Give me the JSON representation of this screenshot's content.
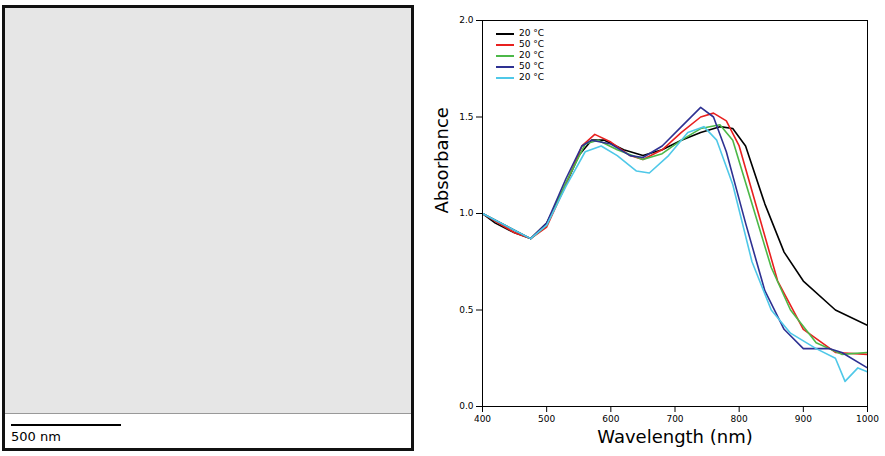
{
  "chart_data": {
    "type": "line",
    "x_label": "Wavelength (nm)",
    "y_label": "Absorbance",
    "xlim": [
      400,
      1000
    ],
    "xticks": [
      400,
      500,
      600,
      700,
      800,
      900,
      1000
    ],
    "ylim": [
      0,
      2
    ],
    "yticks": [
      {
        "value": 0,
        "label": "0.0"
      },
      {
        "value": 0.5,
        "label": "0.5"
      },
      {
        "value": 1,
        "label": "1.0"
      },
      {
        "value": 1.5,
        "label": "1.5"
      },
      {
        "value": 2,
        "label": "2.0"
      }
    ],
    "legend": "top-left",
    "series": [
      {
        "name": "20 °C",
        "color": "#000000",
        "x": [
          400,
          420,
          450,
          475,
          500,
          530,
          550,
          570,
          590,
          620,
          650,
          680,
          710,
          740,
          770,
          790,
          810,
          840,
          870,
          900,
          950,
          1000
        ],
        "values": [
          1.0,
          0.95,
          0.9,
          0.87,
          0.95,
          1.15,
          1.3,
          1.38,
          1.38,
          1.33,
          1.3,
          1.33,
          1.38,
          1.42,
          1.45,
          1.44,
          1.35,
          1.05,
          0.8,
          0.65,
          0.5,
          0.42
        ]
      },
      {
        "name": "50 °C",
        "color": "#e8201f",
        "x": [
          400,
          450,
          475,
          500,
          530,
          555,
          575,
          600,
          630,
          650,
          680,
          710,
          740,
          760,
          780,
          800,
          830,
          860,
          900,
          950,
          1000
        ],
        "values": [
          1.0,
          0.9,
          0.87,
          0.93,
          1.15,
          1.35,
          1.41,
          1.37,
          1.3,
          1.28,
          1.33,
          1.42,
          1.5,
          1.52,
          1.48,
          1.35,
          1.0,
          0.65,
          0.4,
          0.28,
          0.27
        ]
      },
      {
        "name": "20 °C",
        "color": "#4cb848",
        "x": [
          400,
          475,
          500,
          530,
          560,
          580,
          610,
          650,
          680,
          710,
          740,
          770,
          790,
          820,
          850,
          880,
          920,
          960,
          1000
        ],
        "values": [
          1.0,
          0.87,
          0.94,
          1.16,
          1.36,
          1.38,
          1.33,
          1.28,
          1.31,
          1.38,
          1.44,
          1.46,
          1.38,
          1.05,
          0.72,
          0.5,
          0.33,
          0.27,
          0.28
        ]
      },
      {
        "name": "50 °C",
        "color": "#2e3192",
        "x": [
          400,
          475,
          500,
          530,
          555,
          570,
          600,
          630,
          650,
          680,
          710,
          740,
          760,
          780,
          810,
          840,
          870,
          900,
          940,
          960,
          1000
        ],
        "values": [
          1.0,
          0.87,
          0.95,
          1.18,
          1.35,
          1.38,
          1.36,
          1.3,
          1.29,
          1.35,
          1.45,
          1.55,
          1.5,
          1.32,
          0.95,
          0.6,
          0.4,
          0.3,
          0.3,
          0.28,
          0.2
        ]
      },
      {
        "name": "20 °C",
        "color": "#4fc8e8",
        "x": [
          400,
          475,
          500,
          530,
          560,
          585,
          610,
          640,
          660,
          690,
          720,
          745,
          765,
          790,
          820,
          850,
          880,
          920,
          950,
          965,
          985,
          1000
        ],
        "values": [
          1.0,
          0.87,
          0.94,
          1.14,
          1.32,
          1.35,
          1.3,
          1.22,
          1.21,
          1.3,
          1.42,
          1.45,
          1.38,
          1.15,
          0.75,
          0.5,
          0.38,
          0.3,
          0.25,
          0.13,
          0.2,
          0.18
        ]
      }
    ]
  },
  "micrograph": {
    "scale_bar_label": "500 nm"
  }
}
